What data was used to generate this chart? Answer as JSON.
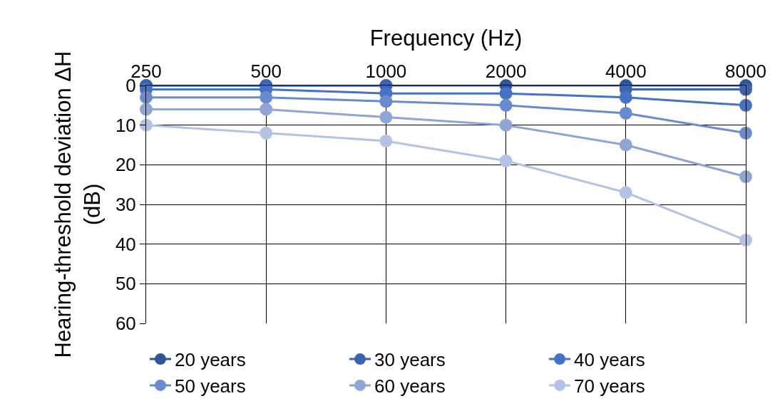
{
  "chart_data": {
    "type": "line",
    "xlabel": "Frequency (Hz)",
    "ylabel": "Hearing-threshold deviation ΔH\n(dB)",
    "categories": [
      "250",
      "500",
      "1000",
      "2000",
      "4000",
      "8000"
    ],
    "ylim": [
      60,
      0
    ],
    "yticks": [
      0,
      10,
      20,
      30,
      40,
      50,
      60
    ],
    "grid": true,
    "legend": "bottom",
    "marker": "circle",
    "line_style": "solid",
    "series": [
      {
        "name": "20 years",
        "color": "#2f5597",
        "values": [
          0,
          0,
          0,
          0,
          0,
          0
        ]
      },
      {
        "name": "30 years",
        "color": "#3a63b0",
        "values": [
          0,
          0,
          0,
          null,
          1,
          1
        ]
      },
      {
        "name": "40 years",
        "color": "#4472c4",
        "values": [
          1,
          1,
          2,
          2,
          3,
          5
        ]
      },
      {
        "name": "50 years",
        "color": "#6a8ad0",
        "values": [
          3,
          3,
          4,
          5,
          7,
          12
        ]
      },
      {
        "name": "60 years",
        "color": "#8fa5d6",
        "values": [
          6,
          6,
          8,
          10,
          15,
          23
        ]
      },
      {
        "name": "70 years",
        "color": "#b4c2e4",
        "values": [
          10,
          12,
          14,
          19,
          27,
          39
        ]
      }
    ]
  }
}
